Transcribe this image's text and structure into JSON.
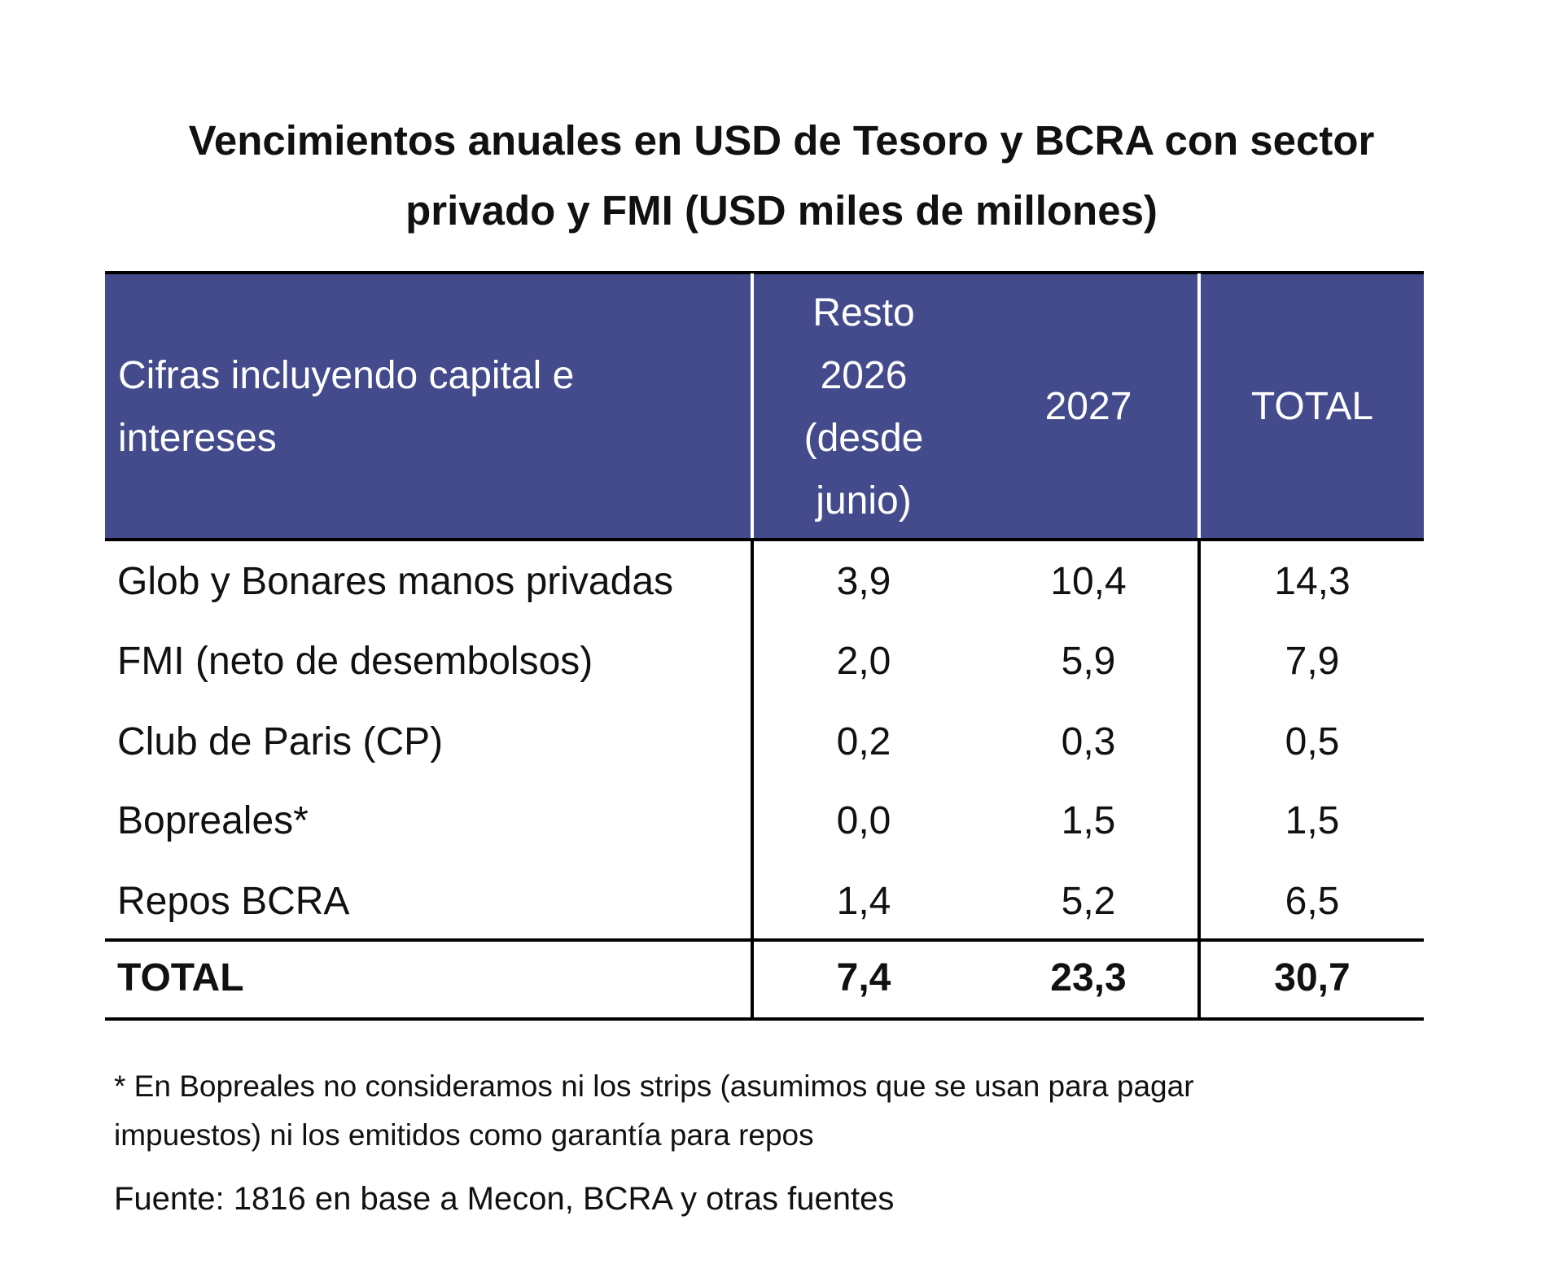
{
  "title": "Vencimientos anuales en USD de Tesoro y BCRA con sector privado y FMI (USD miles de millones)",
  "table": {
    "columns": [
      "Cifras incluyendo capital e intereses",
      "Resto 2026 (desde junio)",
      "2027",
      "TOTAL"
    ],
    "rows": [
      [
        "Glob y Bonares manos privadas",
        "3,9",
        "10,4",
        "14,3"
      ],
      [
        "FMI (neto de desembolsos)",
        "2,0",
        "5,9",
        "7,9"
      ],
      [
        "Club de Paris (CP)",
        "0,2",
        "0,3",
        "0,5"
      ],
      [
        "Bopreales*",
        "0,0",
        "1,5",
        "1,5"
      ],
      [
        "Repos BCRA",
        "1,4",
        "5,2",
        "6,5"
      ]
    ],
    "total": [
      "TOTAL",
      "7,4",
      "23,3",
      "30,7"
    ]
  },
  "footnote": "* En Bopreales no consideramos ni los strips (asumimos que se usan para pagar impuestos) ni los emitidos como garantía para repos",
  "source": "Fuente: 1816 en base a Mecon, BCRA y otras fuentes"
}
